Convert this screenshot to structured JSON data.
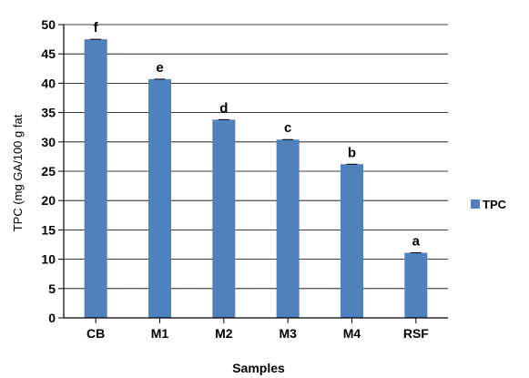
{
  "chart_data": {
    "type": "bar",
    "categories": [
      "CB",
      "M1",
      "M2",
      "M3",
      "M4",
      "RSF"
    ],
    "series": [
      {
        "name": "TPC",
        "values": [
          47.5,
          40.7,
          33.8,
          30.4,
          26.2,
          11.1
        ],
        "color": "#4f81bd"
      }
    ],
    "data_labels": [
      "f",
      "e",
      "d",
      "c",
      "b",
      "a"
    ],
    "xlabel": "Samples",
    "ylabel": "TPC (mg GA/100 g fat",
    "ylim": [
      0,
      50
    ],
    "ytick_step": 5,
    "grid": true,
    "legend_position": "right"
  }
}
